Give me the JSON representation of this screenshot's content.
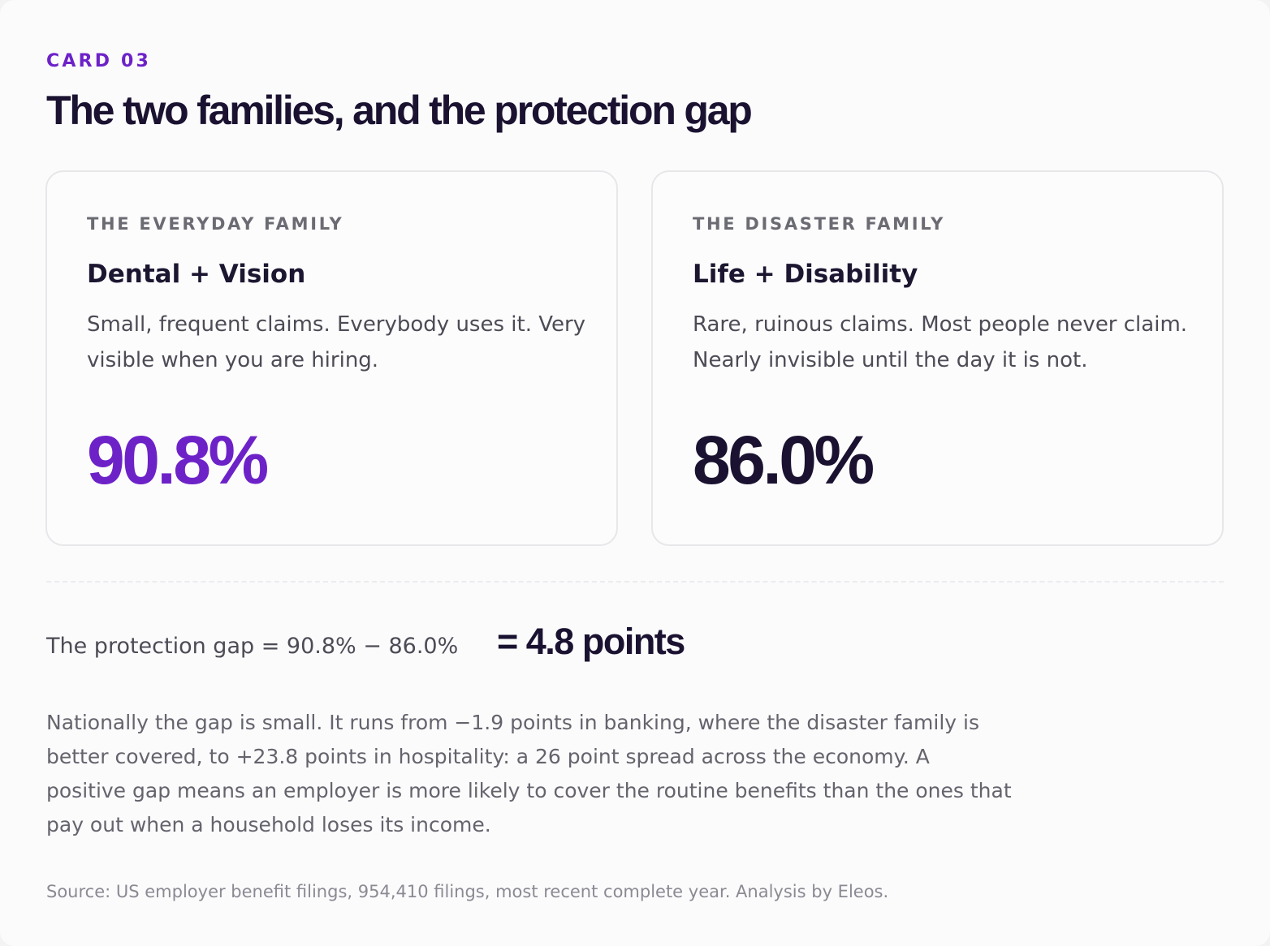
{
  "header": {
    "eyebrow": "CARD 03",
    "title": "The two families, and the protection gap"
  },
  "cards": [
    {
      "kicker": "THE EVERYDAY FAMILY",
      "title": "Dental + Vision",
      "description": "Small, frequent claims. Everybody uses it. Very visible when you are hiring.",
      "value": "90.8%",
      "value_color": "#6d22c8"
    },
    {
      "kicker": "THE DISASTER FAMILY",
      "title": "Life + Disability",
      "description": "Rare, ruinous claims. Most people never claim. Nearly invisible until the day it is not.",
      "value": "86.0%",
      "value_color": "#1a1230"
    }
  ],
  "gap": {
    "formula": "The protection gap = 90.8% − 86.0%",
    "result": "= 4.8 points"
  },
  "body": {
    "text": "Nationally the gap is small. It runs from −1.9 points in banking, where the disaster family is better covered, to +23.8 points in hospitality: a 26 point spread across the economy. A positive gap means an employer is more likely to cover the routine benefits than the ones that pay out when a household loses its income."
  },
  "footer": {
    "source": "Source: US employer benefit filings, 954,410 filings, most recent complete year. Analysis by Eleos."
  },
  "colors": {
    "accent": "#6d22c8",
    "ink": "#1a1230",
    "border": "#e7e7ea"
  }
}
